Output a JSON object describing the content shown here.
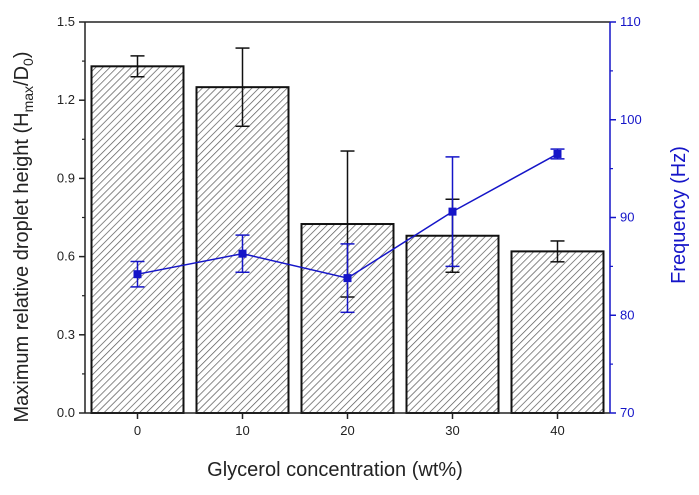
{
  "chart_data": {
    "type": "bar+line",
    "categories": [
      "0",
      "10",
      "20",
      "30",
      "40"
    ],
    "xlabel": "Glycerol concentration (wt%)",
    "ylabel": {
      "prefix": "Maximum relative droplet height (",
      "H": "H",
      "H_sub": "max",
      "slash": "/D",
      "D_sub": "0",
      "suffix": ")"
    },
    "y2label": "Frequency (Hz)",
    "ylim": [
      0,
      1.5
    ],
    "yticks": [
      "0.0",
      "0.3",
      "0.6",
      "0.9",
      "1.2",
      "1.5"
    ],
    "y2lim": [
      70,
      110
    ],
    "y2ticks": [
      "70",
      "80",
      "90",
      "100",
      "110"
    ],
    "series": [
      {
        "name": "Maximum relative droplet height",
        "type": "bar",
        "axis": "left",
        "values": [
          1.33,
          1.25,
          0.725,
          0.68,
          0.62
        ],
        "errors": [
          0.04,
          0.15,
          0.28,
          0.14,
          0.04
        ]
      },
      {
        "name": "Frequency",
        "type": "line",
        "axis": "right",
        "values": [
          84.2,
          86.3,
          83.8,
          90.6,
          96.5
        ],
        "errors": [
          1.3,
          1.9,
          3.5,
          5.6,
          0.5
        ]
      }
    ],
    "colors": {
      "bar_edge": "#111111",
      "hatch": "#555555",
      "line": "#1515c8",
      "axis": "#222222",
      "axis_right": "#1515c8"
    }
  }
}
